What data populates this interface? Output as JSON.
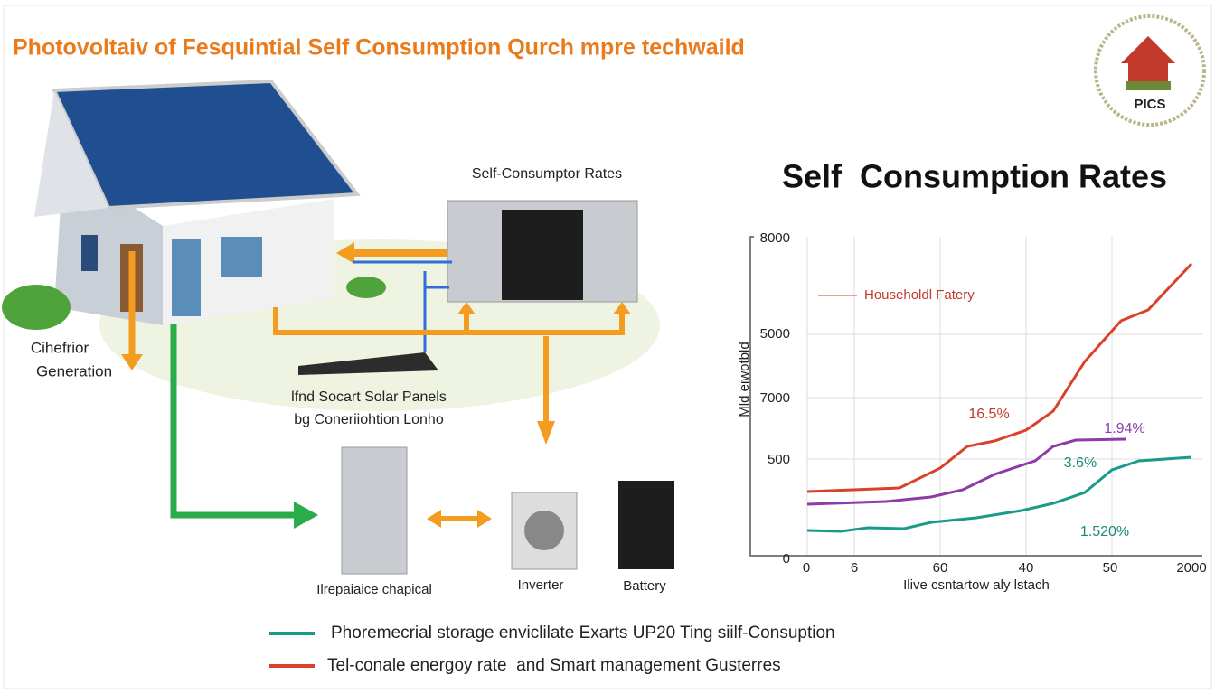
{
  "header": {
    "title": "Photovoltaiv of Fesquintial Self Consumption Qurch mpre techwaild",
    "logo": "PICS"
  },
  "diagram": {
    "generation": [
      "Cihefrior",
      "Generation"
    ],
    "converter": "Self-Consumptor Rates",
    "panels": [
      "lfnd Socart Solar Panels",
      "bg Coneriiohtion Lonho"
    ],
    "appliance": "Ilrepaiaice chapical",
    "inverter": "Inverter",
    "battery": "Battery"
  },
  "chart": {
    "title": "Self  Consumption Rates",
    "y_axis_label": "Mld eiwotbld",
    "x_axis_label": "Ilive csntartow aly lstach",
    "y_labels": [
      8000,
      5000,
      7000,
      500,
      0
    ],
    "x_labels": [
      0,
      6,
      60,
      40,
      50,
      2000
    ],
    "series_label": "Householdl Fatery",
    "annotations": [
      "16.5%",
      "1.94%",
      "3.6%",
      "1.520%"
    ]
  },
  "legend": [
    "Phoremecrial storage enviclilate Exarts UP20 Ting siilf-Consuption",
    "Tel-conale energoy rate  and Smart management Gusterres"
  ]
}
